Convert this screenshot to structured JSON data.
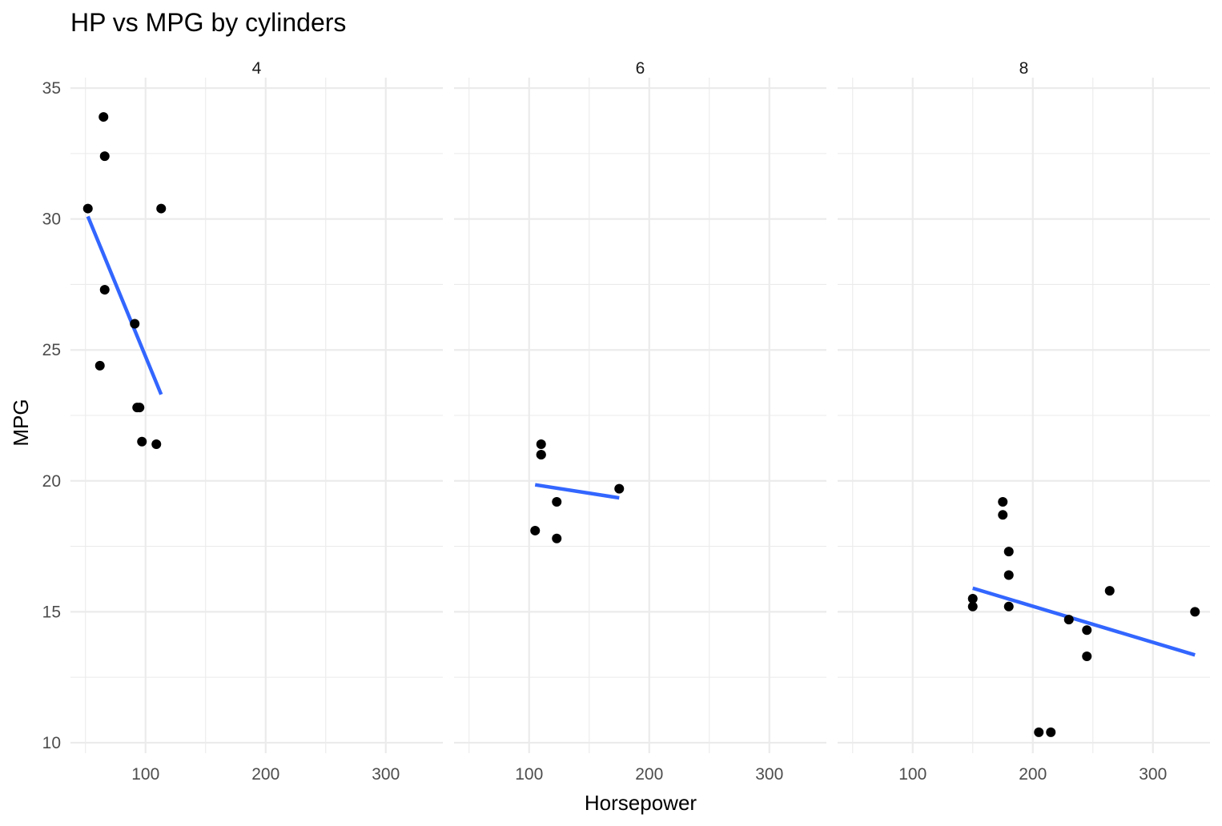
{
  "chart_data": {
    "type": "scatter",
    "title": "HP vs MPG by cylinders",
    "xlabel": "Horsepower",
    "ylabel": "MPG",
    "xlim": [
      37.5,
      347.5
    ],
    "ylim": [
      9.6,
      35.4
    ],
    "x_ticks": [
      100,
      200,
      300
    ],
    "y_ticks": [
      10,
      15,
      20,
      25,
      30,
      35
    ],
    "x_tick_labels": [
      "100",
      "200",
      "300"
    ],
    "y_tick_labels": [
      "10",
      "15",
      "20",
      "25",
      "30",
      "35"
    ],
    "grid": true,
    "panels": [
      {
        "label": "4",
        "points": [
          {
            "x": 93,
            "y": 22.8
          },
          {
            "x": 62,
            "y": 24.4
          },
          {
            "x": 95,
            "y": 22.8
          },
          {
            "x": 66,
            "y": 32.4
          },
          {
            "x": 52,
            "y": 30.4
          },
          {
            "x": 65,
            "y": 33.9
          },
          {
            "x": 97,
            "y": 21.5
          },
          {
            "x": 66,
            "y": 27.3
          },
          {
            "x": 91,
            "y": 26.0
          },
          {
            "x": 113,
            "y": 30.4
          },
          {
            "x": 109,
            "y": 21.4
          }
        ],
        "fit": {
          "x": [
            52,
            113
          ],
          "y": [
            30.1,
            23.3
          ]
        }
      },
      {
        "label": "6",
        "points": [
          {
            "x": 110,
            "y": 21.0
          },
          {
            "x": 110,
            "y": 21.4
          },
          {
            "x": 110,
            "y": 21.0
          },
          {
            "x": 105,
            "y": 18.1
          },
          {
            "x": 123,
            "y": 19.2
          },
          {
            "x": 123,
            "y": 17.8
          },
          {
            "x": 175,
            "y": 19.7
          }
        ],
        "fit": {
          "x": [
            105,
            175
          ],
          "y": [
            19.85,
            19.35
          ]
        }
      },
      {
        "label": "8",
        "points": [
          {
            "x": 175,
            "y": 18.7
          },
          {
            "x": 245,
            "y": 14.3
          },
          {
            "x": 180,
            "y": 16.4
          },
          {
            "x": 180,
            "y": 17.3
          },
          {
            "x": 180,
            "y": 15.2
          },
          {
            "x": 205,
            "y": 10.4
          },
          {
            "x": 215,
            "y": 10.4
          },
          {
            "x": 230,
            "y": 14.7
          },
          {
            "x": 150,
            "y": 15.5
          },
          {
            "x": 150,
            "y": 15.2
          },
          {
            "x": 245,
            "y": 13.3
          },
          {
            "x": 175,
            "y": 19.2
          },
          {
            "x": 264,
            "y": 15.8
          },
          {
            "x": 335,
            "y": 15.0
          }
        ],
        "fit": {
          "x": [
            150,
            335
          ],
          "y": [
            15.9,
            13.35
          ]
        }
      }
    ]
  }
}
